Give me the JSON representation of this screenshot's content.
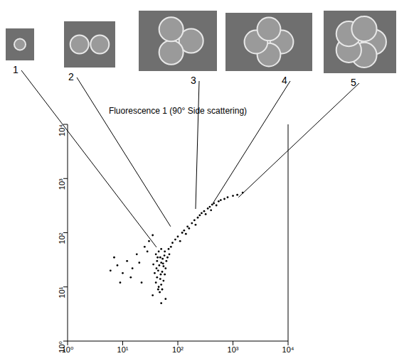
{
  "chart_data": {
    "type": "scatter",
    "title": "Fluorescence 1 (90° Side scattering)",
    "color": "#000000",
    "log": true,
    "xlim": [
      1,
      10000
    ],
    "ylim": [
      1,
      10000
    ],
    "xticks": [
      {
        "value": 1,
        "label": "10⁰"
      },
      {
        "value": 10,
        "label": "10¹"
      },
      {
        "value": 100,
        "label": "10²"
      },
      {
        "value": 1000,
        "label": "10³"
      },
      {
        "value": 10000,
        "label": "10⁴"
      }
    ],
    "yticks": [
      {
        "value": 1,
        "label": "10⁰"
      },
      {
        "value": 10,
        "label": "10¹"
      },
      {
        "value": 100,
        "label": "10²"
      },
      {
        "value": 1000,
        "label": "10³"
      },
      {
        "value": 10000,
        "label": "10⁴"
      }
    ],
    "x": [
      40,
      45,
      50,
      42,
      48,
      55,
      38,
      44,
      52,
      58,
      46,
      50,
      42,
      55,
      60,
      48,
      53,
      40,
      57,
      62,
      45,
      50,
      44,
      47,
      52,
      41,
      49,
      54,
      43,
      58,
      36,
      65,
      70,
      68,
      75,
      80,
      90,
      100,
      110,
      120,
      130,
      140,
      150,
      160,
      180,
      200,
      210,
      230,
      250,
      270,
      300,
      320,
      350,
      380,
      400,
      420,
      450,
      500,
      550,
      600,
      700,
      800,
      1000,
      1200,
      1500,
      6,
      8,
      10,
      12,
      15,
      7,
      18,
      20,
      25,
      30,
      14,
      22,
      9,
      28,
      35,
      50,
      60,
      35
    ],
    "y": [
      12,
      10,
      11,
      15,
      14,
      13,
      18,
      20,
      19,
      17,
      25,
      28,
      30,
      24,
      22,
      35,
      33,
      40,
      38,
      30,
      45,
      50,
      9,
      8,
      9,
      22,
      17,
      27,
      35,
      45,
      26,
      35,
      40,
      50,
      55,
      65,
      75,
      85,
      70,
      100,
      110,
      95,
      130,
      120,
      150,
      170,
      140,
      190,
      210,
      230,
      250,
      220,
      280,
      300,
      260,
      330,
      350,
      320,
      380,
      400,
      420,
      450,
      480,
      500,
      550,
      20,
      25,
      18,
      30,
      22,
      35,
      40,
      28,
      55,
      70,
      15,
      12,
      12,
      45,
      90,
      5,
      6,
      7
    ],
    "annotations": [
      {
        "label": "1",
        "x": 41,
        "y": 54
      },
      {
        "label": "2",
        "x": 74,
        "y": 130
      },
      {
        "label": "3",
        "x": 210,
        "y": 275
      },
      {
        "label": "4",
        "x": 445,
        "y": 365
      },
      {
        "label": "5",
        "x": 1260,
        "y": 450
      }
    ]
  }
}
